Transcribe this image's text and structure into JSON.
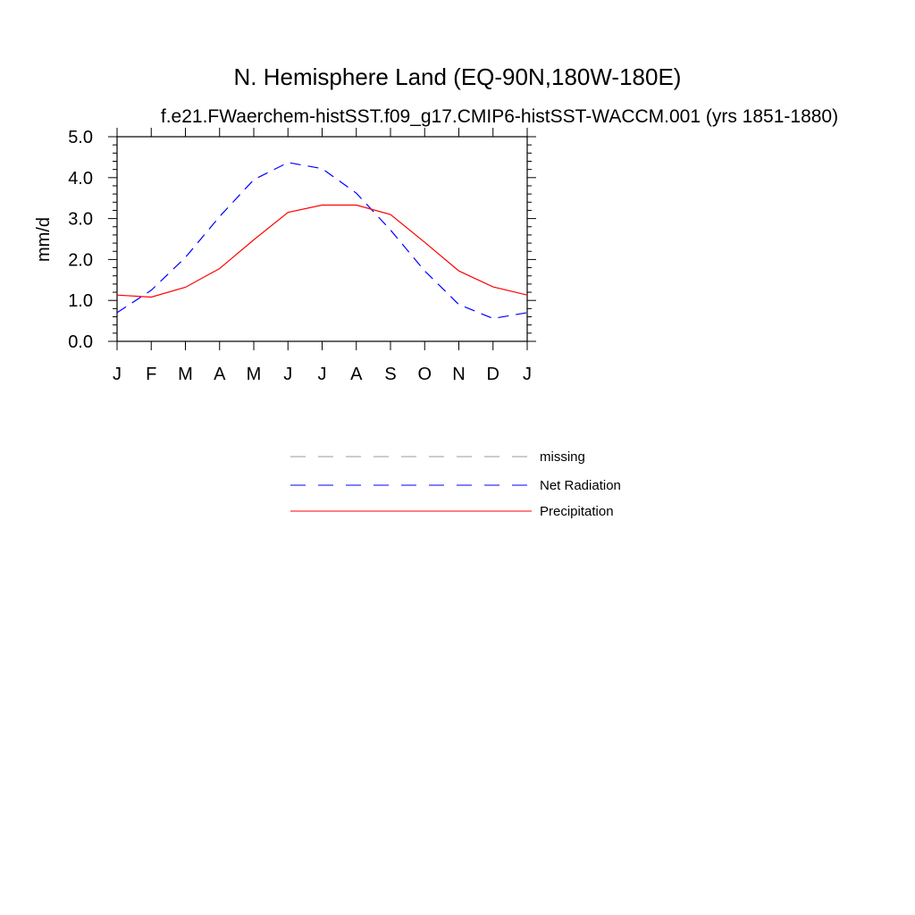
{
  "chart_data": {
    "type": "line",
    "title": "N. Hemisphere Land (EQ-90N,180W-180E)",
    "subtitle": "f.e21.FWaerchem-histSST.f09_g17.CMIP6-histSST-WACCM.001 (yrs 1851-1880)",
    "xlabel": "",
    "ylabel": "mm/d",
    "ylim": [
      0,
      5
    ],
    "y_ticks": [
      "0.0",
      "1.0",
      "2.0",
      "3.0",
      "4.0",
      "5.0"
    ],
    "categories": [
      "J",
      "F",
      "M",
      "A",
      "M",
      "J",
      "J",
      "A",
      "S",
      "O",
      "N",
      "D",
      "J"
    ],
    "grid": false,
    "legend_position": "bottom",
    "series": [
      {
        "name": "Net Radiation",
        "color": "#0000ff",
        "dash": "dashed",
        "values": [
          0.7,
          1.25,
          2.05,
          3.05,
          3.95,
          4.37,
          4.22,
          3.62,
          2.72,
          1.72,
          0.9,
          0.56,
          0.7
        ]
      },
      {
        "name": "Precipitation",
        "color": "#ff0000",
        "dash": "solid",
        "values": [
          1.13,
          1.08,
          1.32,
          1.78,
          2.48,
          3.15,
          3.33,
          3.33,
          3.1,
          2.42,
          1.72,
          1.33,
          1.13
        ]
      }
    ],
    "legend": [
      {
        "label": "missing",
        "color": "#999999",
        "dash": "dashed"
      },
      {
        "label": "Net Radiation",
        "color": "#0000ff",
        "dash": "dashed"
      },
      {
        "label": "Precipitation",
        "color": "#ff0000",
        "dash": "solid"
      }
    ]
  }
}
